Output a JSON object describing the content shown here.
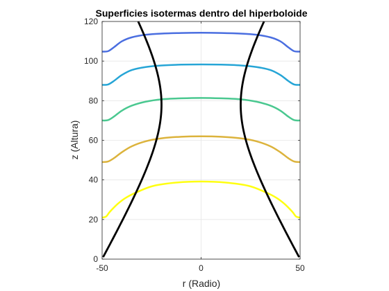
{
  "chart_data": {
    "type": "line",
    "title": "Superficies isotermas dentro del hiperboloide",
    "xlabel": "r (Radio)",
    "ylabel": "z (Altura)",
    "xlim": [
      -50,
      50
    ],
    "ylim": [
      0,
      120
    ],
    "xticks": [
      -50,
      0,
      50
    ],
    "yticks": [
      0,
      20,
      40,
      60,
      80,
      100,
      120
    ],
    "xtick_labels": [
      "-50",
      "0",
      "50"
    ],
    "ytick_labels": [
      "0",
      "20",
      "40",
      "60",
      "80",
      "100",
      "120"
    ],
    "grid": true,
    "isotherms": [
      {
        "color": "#ffff11",
        "points": [
          [
            -50,
            21
          ],
          [
            -48,
            21.5
          ],
          [
            -46,
            24
          ],
          [
            -42,
            28
          ],
          [
            -38,
            31
          ],
          [
            -32,
            34
          ],
          [
            -24,
            37
          ],
          [
            -12,
            38.7
          ],
          [
            0,
            39.2
          ],
          [
            12,
            38.7
          ],
          [
            24,
            37
          ],
          [
            32,
            34
          ],
          [
            38,
            31
          ],
          [
            42,
            28
          ],
          [
            46,
            24
          ],
          [
            48,
            21.5
          ],
          [
            50,
            21
          ]
        ]
      },
      {
        "color": "#dcb33c",
        "points": [
          [
            -50,
            49
          ],
          [
            -47,
            49.3
          ],
          [
            -44,
            51
          ],
          [
            -40,
            54
          ],
          [
            -35,
            57
          ],
          [
            -28,
            59.5
          ],
          [
            -20,
            61
          ],
          [
            -10,
            61.8
          ],
          [
            0,
            62
          ],
          [
            10,
            61.8
          ],
          [
            20,
            61
          ],
          [
            28,
            59.5
          ],
          [
            35,
            57
          ],
          [
            40,
            54
          ],
          [
            44,
            51
          ],
          [
            47,
            49.3
          ],
          [
            50,
            49
          ]
        ]
      },
      {
        "color": "#4ac890",
        "points": [
          [
            -50,
            70
          ],
          [
            -47,
            70.2
          ],
          [
            -44,
            72
          ],
          [
            -40,
            75
          ],
          [
            -35,
            77.5
          ],
          [
            -28,
            79.5
          ],
          [
            -20,
            80.7
          ],
          [
            -10,
            81.2
          ],
          [
            0,
            81.4
          ],
          [
            10,
            81.2
          ],
          [
            20,
            80.7
          ],
          [
            28,
            79.5
          ],
          [
            35,
            77.5
          ],
          [
            40,
            75
          ],
          [
            44,
            72
          ],
          [
            47,
            70.2
          ],
          [
            50,
            70
          ]
        ]
      },
      {
        "color": "#26a5d6",
        "points": [
          [
            -50,
            88
          ],
          [
            -47,
            88.2
          ],
          [
            -44,
            90
          ],
          [
            -40,
            93
          ],
          [
            -35,
            95.5
          ],
          [
            -28,
            97
          ],
          [
            -20,
            97.8
          ],
          [
            -10,
            98.2
          ],
          [
            0,
            98.3
          ],
          [
            10,
            98.2
          ],
          [
            20,
            97.8
          ],
          [
            28,
            97
          ],
          [
            35,
            95.5
          ],
          [
            40,
            93
          ],
          [
            44,
            90
          ],
          [
            47,
            88.2
          ],
          [
            50,
            88
          ]
        ]
      },
      {
        "color": "#4a6ee0",
        "points": [
          [
            -50,
            104.8
          ],
          [
            -47,
            105
          ],
          [
            -44,
            107
          ],
          [
            -40,
            110
          ],
          [
            -35,
            112
          ],
          [
            -28,
            113.3
          ],
          [
            -20,
            113.9
          ],
          [
            -10,
            114.2
          ],
          [
            0,
            114.3
          ],
          [
            10,
            114.2
          ],
          [
            20,
            113.9
          ],
          [
            28,
            113.3
          ],
          [
            35,
            112
          ],
          [
            40,
            110
          ],
          [
            44,
            107
          ],
          [
            47,
            105
          ],
          [
            50,
            104.8
          ]
        ]
      }
    ],
    "hyperboloid": {
      "color": "#000000",
      "neck_radius": 20,
      "neck_height": 78,
      "scale": 34
    }
  }
}
